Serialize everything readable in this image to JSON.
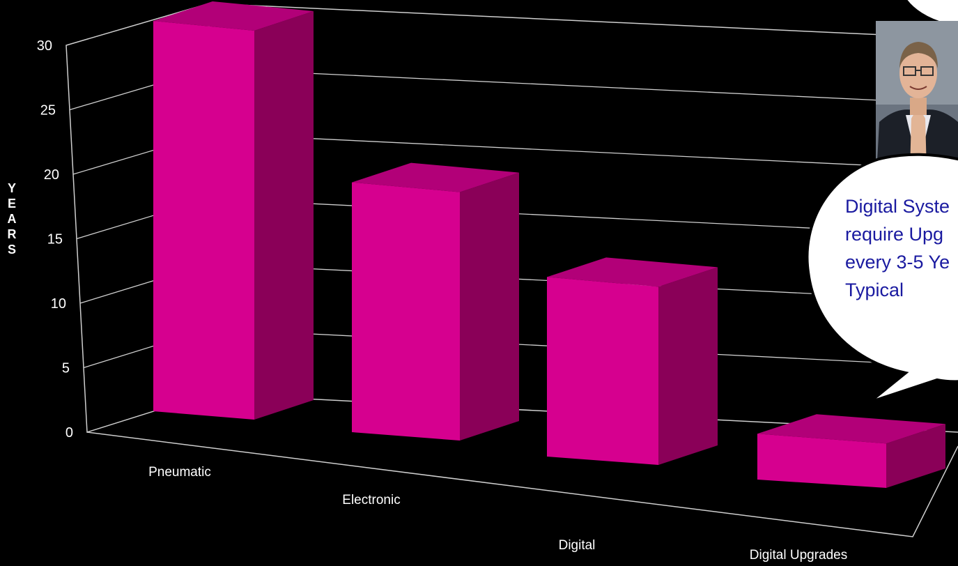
{
  "chart_data": {
    "type": "bar",
    "categories": [
      "Pneumatic",
      "Electronic",
      "Digital",
      "Digital Upgrades"
    ],
    "values": [
      30,
      20,
      15,
      4
    ],
    "ylabel": "YEARS",
    "ylim": [
      0,
      30
    ],
    "yticks": [
      "0",
      "5",
      "10",
      "15",
      "20",
      "25",
      "30"
    ],
    "grid": true,
    "bar_color": "#d6008f",
    "bar_side_color": "#8a0058",
    "bar_top_color": "#b20078",
    "style": "3d"
  },
  "callout": {
    "lines": [
      "Digital Syste",
      "require Upg",
      "every 3-5 Ye",
      "Typical"
    ]
  },
  "photo": {
    "icon": "person-photo"
  }
}
